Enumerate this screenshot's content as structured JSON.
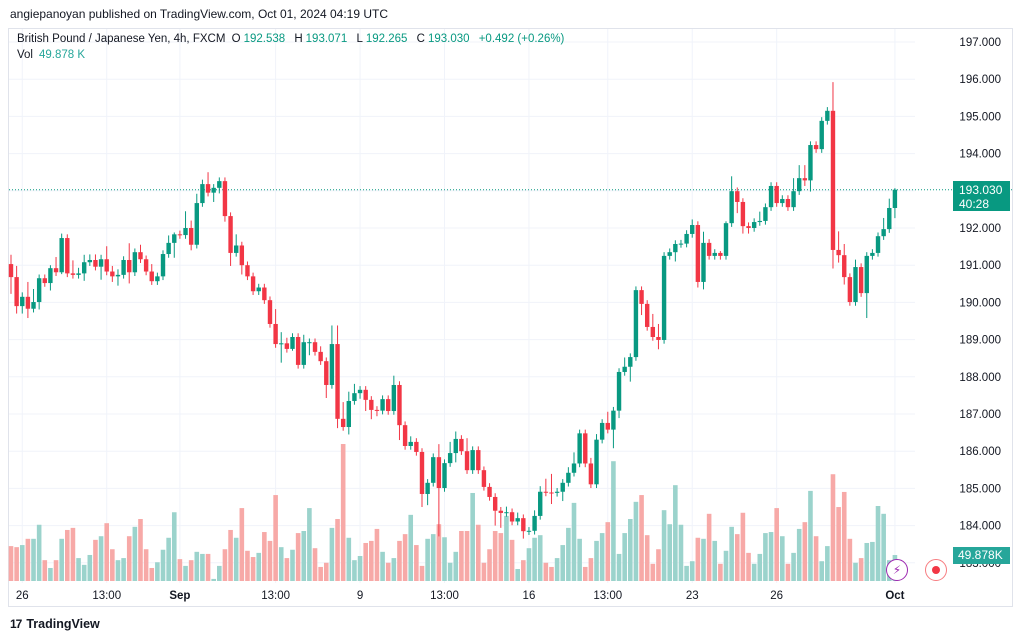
{
  "publisher_line": "angiepanoyan published on TradingView.com, Oct 01, 2024 04:19 UTC",
  "legend": {
    "symbol": "British Pound / Japanese Yen, 4h, FXCM",
    "o_label": "O",
    "o": "192.538",
    "h_label": "H",
    "h": "193.071",
    "l_label": "L",
    "l": "192.265",
    "c_label": "C",
    "c": "193.030",
    "change": "+0.492 (+0.26%)",
    "vol_label": "Vol",
    "vol": "49.878 K"
  },
  "last_price": {
    "price": "193.030",
    "countdown": "40:28"
  },
  "volume_badge": "49.878K",
  "footer_logo": "TradingView",
  "colors": {
    "up": "#089981",
    "down": "#f23645",
    "vol_up": "#9bd3cc",
    "vol_down": "#f7a9a7"
  },
  "chart_data": {
    "type": "candlestick",
    "title": "British Pound / Japanese Yen, 4h, FXCM",
    "ylim": [
      182.7,
      197.4
    ],
    "y_ticks": [
      "197.000",
      "196.000",
      "195.000",
      "194.000",
      "193.000",
      "192.000",
      "191.000",
      "190.000",
      "189.000",
      "188.000",
      "187.000",
      "186.000",
      "185.000",
      "184.000",
      "183.000"
    ],
    "x_ticks": [
      {
        "label": "26",
        "index": 2
      },
      {
        "label": "13:00",
        "index": 17
      },
      {
        "label": "Sep",
        "index": 30
      },
      {
        "label": "13:00",
        "index": 47
      },
      {
        "label": "9",
        "index": 62
      },
      {
        "label": "13:00",
        "index": 77
      },
      {
        "label": "16",
        "index": 92
      },
      {
        "label": "13:00",
        "index": 106
      },
      {
        "label": "23",
        "index": 121
      },
      {
        "label": "26",
        "index": 136
      },
      {
        "label": "Oct",
        "index": 157
      }
    ],
    "first_open": 191.03,
    "close": [
      190.68,
      189.9,
      190.15,
      189.83,
      190.01,
      190.65,
      190.52,
      190.92,
      190.81,
      191.73,
      190.78,
      190.74,
      190.78,
      191.08,
      191.14,
      190.96,
      191.16,
      190.83,
      190.7,
      190.74,
      191.14,
      190.81,
      191.35,
      191.16,
      190.83,
      190.57,
      190.7,
      191.3,
      191.6,
      191.83,
      191.81,
      192.0,
      191.55,
      192.67,
      193.18,
      192.95,
      193.08,
      193.26,
      192.32,
      191.33,
      191.53,
      191.0,
      190.7,
      190.3,
      190.4,
      190.06,
      189.42,
      188.88,
      188.9,
      188.75,
      189.07,
      188.32,
      188.93,
      188.93,
      188.67,
      188.42,
      187.78,
      188.88,
      186.87,
      186.65,
      187.35,
      187.56,
      187.65,
      187.38,
      187.11,
      187.09,
      187.4,
      187.08,
      187.78,
      186.7,
      186.14,
      186.25,
      185.98,
      184.85,
      185.15,
      185.84,
      185.01,
      185.68,
      185.95,
      186.33,
      186.0,
      185.49,
      186.03,
      185.49,
      185.04,
      184.77,
      184.4,
      184.34,
      184.36,
      184.11,
      184.2,
      183.85,
      183.86,
      184.26,
      184.91,
      184.89,
      184.88,
      184.91,
      185.15,
      185.42,
      185.67,
      186.48,
      185.67,
      185.11,
      186.31,
      186.76,
      186.58,
      187.09,
      188.13,
      188.27,
      188.53,
      190.33,
      189.96,
      189.34,
      189.07,
      188.99,
      191.25,
      191.35,
      191.57,
      191.58,
      191.84,
      192.08,
      190.55,
      191.6,
      191.25,
      191.33,
      191.25,
      192.13,
      192.99,
      192.7,
      192.05,
      192.0,
      192.16,
      192.19,
      192.56,
      193.13,
      192.67,
      192.78,
      192.56,
      192.99,
      193.34,
      193.28,
      194.23,
      194.12,
      194.88,
      195.15,
      191.41,
      191.27,
      190.68,
      190.01,
      190.95,
      190.25,
      191.25,
      191.33,
      191.78,
      191.97,
      192.538,
      193.03
    ],
    "upper_wick": [
      0.25,
      0.3,
      0.12,
      0.4,
      0.35,
      0.1,
      0.1,
      0.08,
      0.3,
      0.12,
      0.1,
      0.35,
      0.15,
      0.2,
      0.15,
      0.15,
      0.12,
      0.35,
      0.15,
      0.15,
      0.1,
      0.45,
      0.1,
      0.2,
      0.1,
      0.2,
      0.1,
      0.1,
      0.2,
      0.05,
      0.1,
      0.45,
      0.2,
      0.25,
      0.12,
      0.32,
      0.1,
      0.1,
      0.1,
      0.1,
      0.3,
      0.1,
      0.1,
      0.1,
      0.1,
      0.1,
      0.1,
      0.4,
      0.3,
      0.15,
      0.1,
      0.1,
      0.2,
      0.1,
      0.1,
      0.15,
      0.1,
      0.5,
      0.5,
      0.45,
      0.25,
      0.25,
      0.1,
      0.1,
      0.1,
      0.1,
      0.1,
      0.1,
      0.25,
      0.1,
      0.1,
      0.15,
      0.1,
      0.1,
      0.1,
      0.1,
      0.35,
      0.1,
      0.3,
      0.2,
      0.1,
      0.35,
      0.1,
      0.1,
      0.1,
      0.1,
      0.1,
      0.1,
      0.15,
      0.1,
      0.15,
      0.1,
      0.1,
      0.15,
      0.15,
      0.35,
      0.5,
      0.1,
      0.1,
      0.15,
      0.3,
      0.1,
      0.1,
      0.15,
      0.15,
      0.1,
      0.3,
      0.1,
      0.1,
      0.25,
      0.1,
      0.1,
      0.1,
      0.1,
      0.35,
      0.35,
      0.1,
      0.1,
      0.1,
      0.1,
      0.1,
      0.15,
      0.1,
      0.3,
      0.1,
      0.1,
      0.05,
      0.05,
      0.4,
      0.1,
      0.1,
      0.1,
      0.1,
      0.25,
      0.1,
      0.1,
      0.1,
      0.1,
      0.1,
      0.35,
      0.35,
      0.35,
      0.1,
      0.1,
      0.1,
      0.1,
      0.77,
      0.5,
      0.3,
      0.1,
      0.2,
      0.1,
      0.1,
      0.1,
      0.1,
      0.3,
      0.25,
      0.041
    ],
    "lower_wick": [
      0.45,
      0.2,
      0.2,
      0.25,
      0.1,
      0.2,
      0.1,
      0.2,
      0.1,
      0.05,
      0.1,
      0.1,
      0.1,
      0.2,
      0.1,
      0.1,
      0.35,
      0.1,
      0.15,
      0.25,
      0.1,
      0.3,
      0.1,
      0.1,
      0.1,
      0.1,
      0.1,
      0.1,
      0.1,
      0.4,
      0.1,
      0.1,
      0.15,
      0.1,
      0.1,
      0.1,
      0.25,
      0.15,
      0.15,
      0.35,
      0.1,
      0.25,
      0.1,
      0.1,
      0.1,
      0.1,
      0.1,
      0.1,
      0.5,
      0.1,
      0.05,
      0.1,
      0.1,
      0.35,
      0.1,
      0.1,
      0.35,
      0.1,
      0.25,
      0.1,
      0.2,
      0.1,
      0.15,
      0.3,
      0.25,
      0.15,
      0.1,
      0.1,
      0.1,
      0.4,
      0.1,
      0.1,
      0.1,
      0.35,
      0.3,
      0.1,
      1.3,
      0.1,
      0.1,
      0.25,
      0.1,
      0.1,
      0.1,
      0.1,
      0.1,
      0.1,
      0.4,
      0.4,
      0.1,
      0.1,
      0.1,
      0.2,
      0.1,
      0.1,
      0.1,
      0.1,
      0.3,
      0.1,
      0.25,
      0.1,
      0.1,
      0.1,
      0.1,
      0.1,
      0.1,
      0.1,
      0.1,
      0.5,
      0.2,
      0.1,
      0.4,
      0.1,
      0.3,
      0.1,
      0.1,
      0.25,
      0.1,
      0.1,
      0.25,
      0.1,
      0.1,
      0.1,
      0.15,
      0.2,
      0.1,
      0.1,
      0.1,
      0.1,
      0.1,
      0.3,
      0.2,
      0.15,
      0.1,
      0.1,
      0.1,
      0.1,
      0.1,
      0.1,
      0.1,
      0.1,
      0.1,
      0.15,
      0.3,
      0.1,
      0.1,
      0.1,
      0.5,
      0.2,
      0.2,
      0.1,
      0.1,
      0.1,
      0.67,
      0.1,
      0.1,
      0.1,
      0.1,
      0.273
    ],
    "volume_k": [
      67,
      65,
      69,
      81,
      81,
      108,
      40,
      25,
      40,
      81,
      98,
      102,
      44,
      31,
      50,
      79,
      86,
      111,
      61,
      40,
      44,
      86,
      104,
      119,
      61,
      25,
      36,
      60,
      83,
      132,
      42,
      29,
      40,
      56,
      52,
      52,
      4,
      29,
      61,
      98,
      83,
      140,
      58,
      46,
      54,
      94,
      77,
      165,
      65,
      44,
      60,
      92,
      96,
      140,
      63,
      27,
      35,
      102,
      119,
      263,
      83,
      40,
      48,
      73,
      77,
      100,
      56,
      35,
      44,
      77,
      90,
      127,
      69,
      29,
      81,
      90,
      109,
      84,
      35,
      56,
      96,
      96,
      169,
      108,
      35,
      61,
      96,
      92,
      125,
      79,
      23,
      40,
      63,
      83,
      88,
      35,
      27,
      44,
      69,
      102,
      150,
      81,
      27,
      44,
      77,
      92,
      113,
      230,
      52,
      92,
      119,
      152,
      165,
      88,
      33,
      61,
      136,
      109,
      184,
      108,
      29,
      38,
      83,
      81,
      129,
      77,
      33,
      58,
      104,
      90,
      131,
      54,
      33,
      52,
      92,
      94,
      140,
      86,
      33,
      54,
      100,
      113,
      173,
      86,
      38,
      67,
      205,
      142,
      171,
      81,
      35,
      44,
      73,
      75,
      144,
      129,
      40,
      49.878
    ]
  }
}
